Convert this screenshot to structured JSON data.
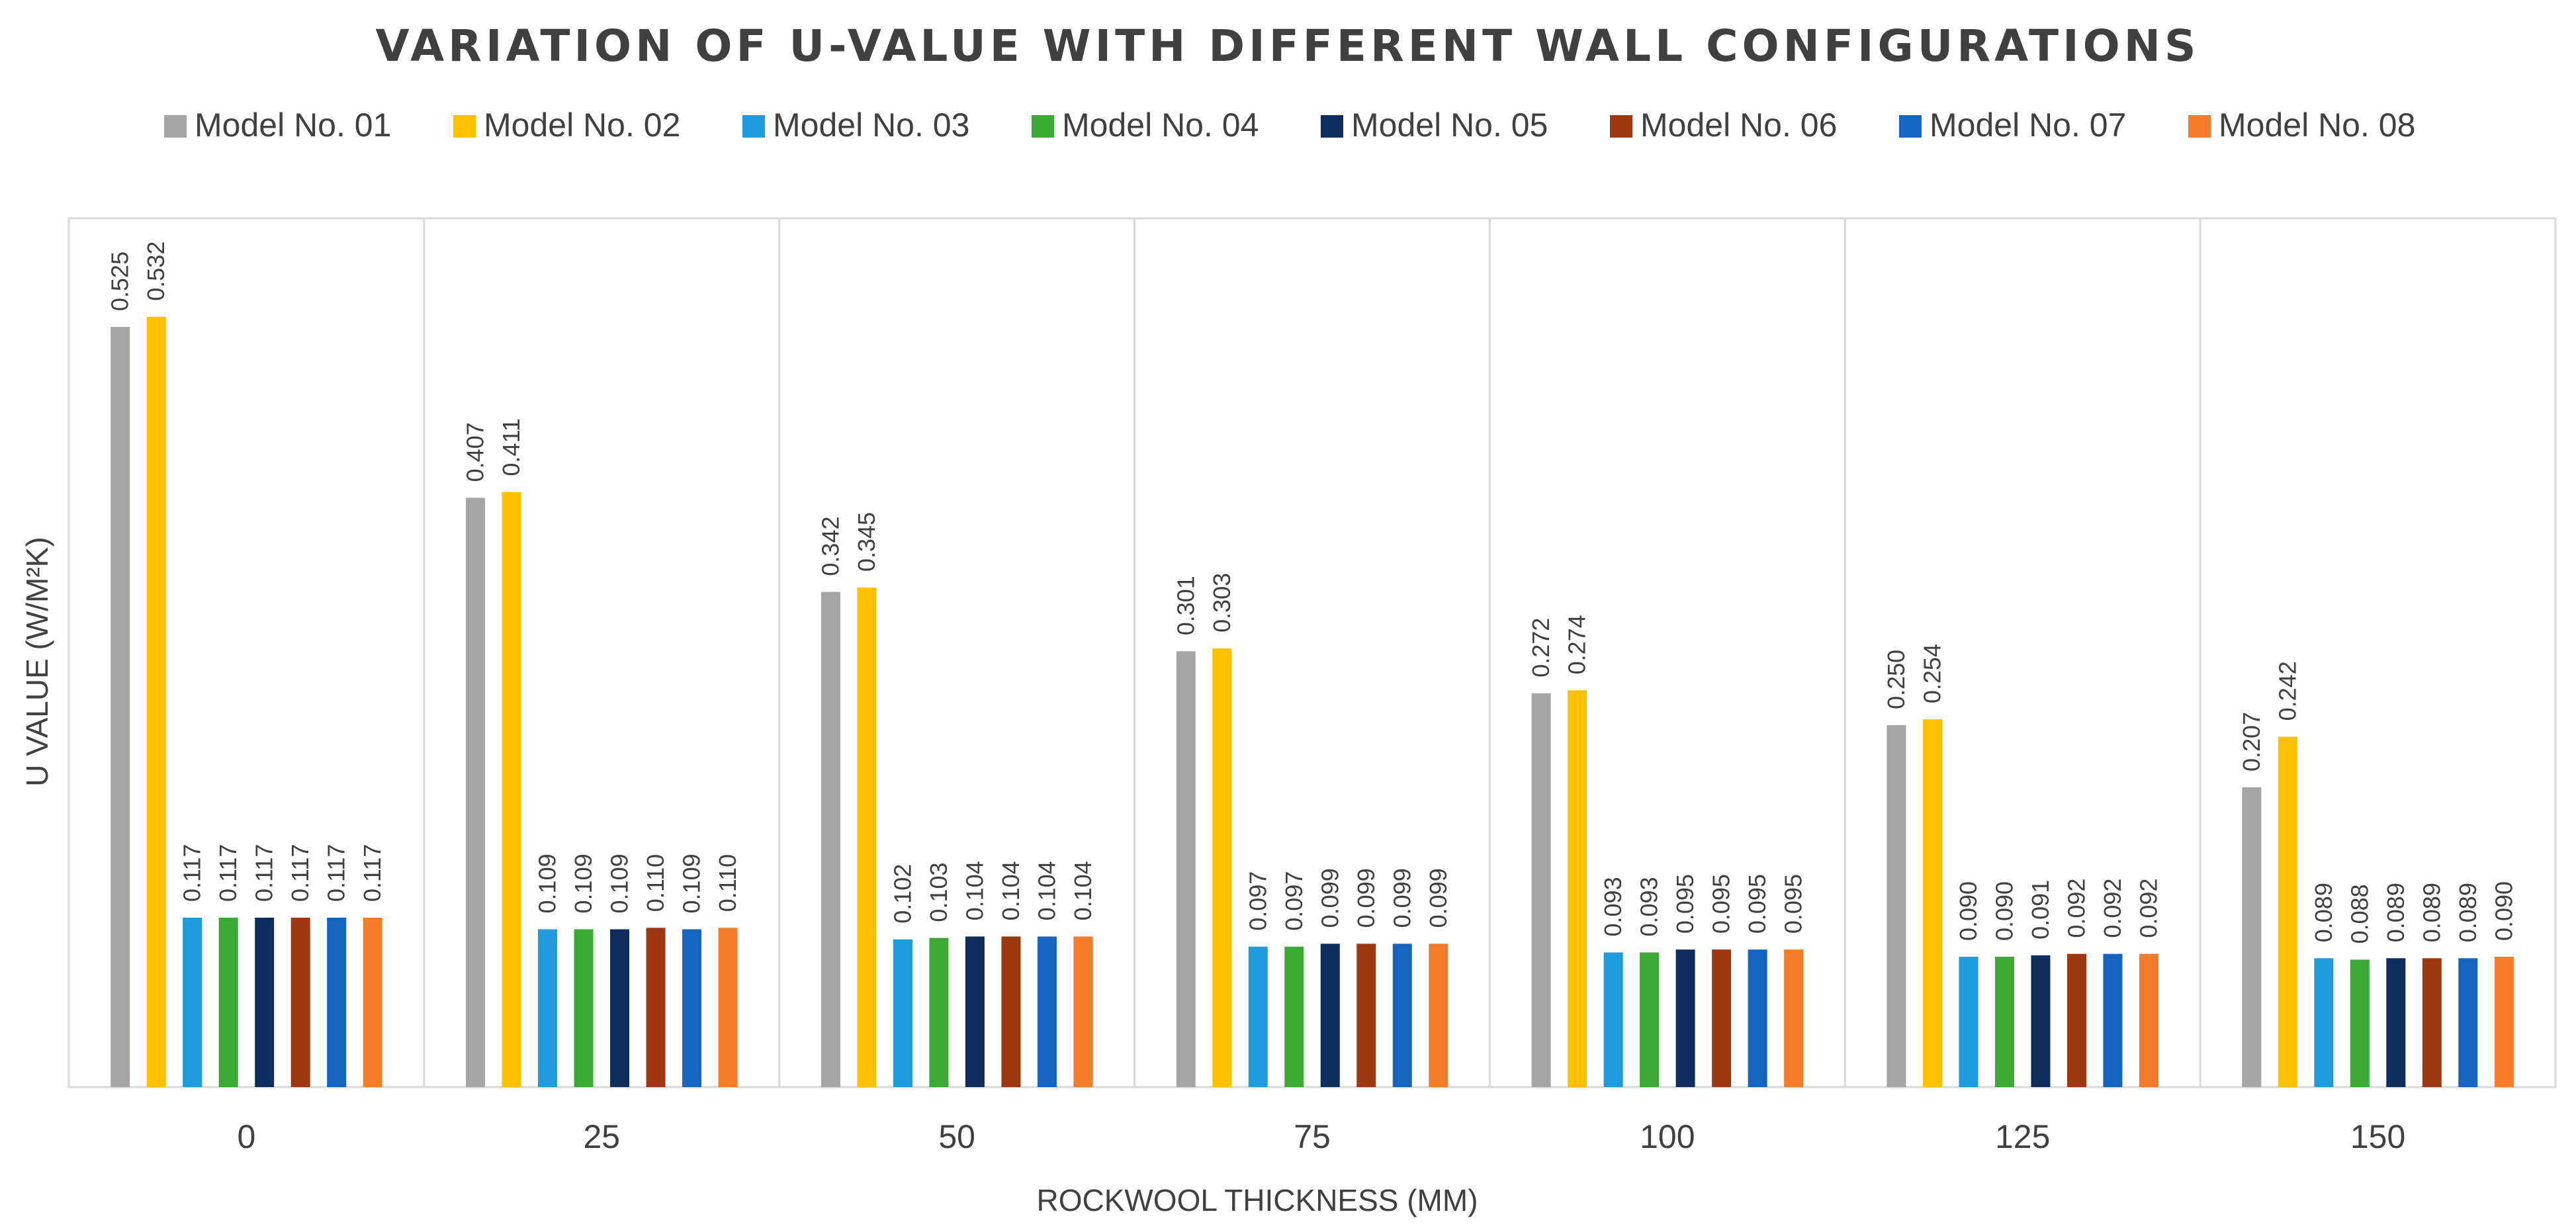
{
  "chart_data": {
    "type": "bar",
    "title": "VARIATION OF U-VALUE WITH DIFFERENT WALL CONFIGURATIONS",
    "xlabel": "ROCKWOOL THICKNESS (MM)",
    "ylabel": "U VALUE  (W/M²K)",
    "ylim": [
      0,
      0.6
    ],
    "grid": false,
    "legend_position": "top",
    "categories": [
      "0",
      "25",
      "50",
      "75",
      "100",
      "125",
      "150"
    ],
    "series": [
      {
        "name": "Model No. 01",
        "color": "#A5A5A5",
        "values": [
          0.525,
          0.407,
          0.342,
          0.301,
          0.272,
          0.25,
          0.207
        ],
        "labels": [
          "0.525",
          "0.407",
          "0.342",
          "0.301",
          "0.272",
          "0.250",
          "0.207"
        ]
      },
      {
        "name": "Model No. 02",
        "color": "#FFC000",
        "values": [
          0.532,
          0.411,
          0.345,
          0.303,
          0.274,
          0.254,
          0.242
        ],
        "labels": [
          "0.532",
          "0.411",
          "0.345",
          "0.303",
          "0.274",
          "0.254",
          "0.242"
        ]
      },
      {
        "name": "Model No. 03",
        "color": "#1F9BDE",
        "values": [
          0.117,
          0.109,
          0.102,
          0.097,
          0.093,
          0.09,
          0.089
        ],
        "labels": [
          "0.117",
          "0.109",
          "0.102",
          "0.097",
          "0.093",
          "0.090",
          "0.089"
        ]
      },
      {
        "name": "Model No. 04",
        "color": "#3AAA35",
        "values": [
          0.117,
          0.109,
          0.103,
          0.097,
          0.093,
          0.09,
          0.088
        ],
        "labels": [
          "0.117",
          "0.109",
          "0.103",
          "0.097",
          "0.093",
          "0.090",
          "0.088"
        ]
      },
      {
        "name": "Model No. 05",
        "color": "#0E2D5E",
        "values": [
          0.117,
          0.109,
          0.104,
          0.099,
          0.095,
          0.091,
          0.089
        ],
        "labels": [
          "0.117",
          "0.109",
          "0.104",
          "0.099",
          "0.095",
          "0.091",
          "0.089"
        ]
      },
      {
        "name": "Model No. 06",
        "color": "#9E3811",
        "values": [
          0.117,
          0.11,
          0.104,
          0.099,
          0.095,
          0.092,
          0.089
        ],
        "labels": [
          "0.117",
          "0.110",
          "0.104",
          "0.099",
          "0.095",
          "0.092",
          "0.089"
        ]
      },
      {
        "name": "Model No. 07",
        "color": "#1565C0",
        "values": [
          0.117,
          0.109,
          0.104,
          0.099,
          0.095,
          0.092,
          0.089
        ],
        "labels": [
          "0.117",
          "0.109",
          "0.104",
          "0.099",
          "0.095",
          "0.092",
          "0.089"
        ]
      },
      {
        "name": "Model No. 08",
        "color": "#F47B2A",
        "values": [
          0.117,
          0.11,
          0.104,
          0.099,
          0.095,
          0.092,
          0.09
        ],
        "labels": [
          "0.117",
          "0.110",
          "0.104",
          "0.099",
          "0.095",
          "0.092",
          "0.090"
        ]
      }
    ]
  }
}
